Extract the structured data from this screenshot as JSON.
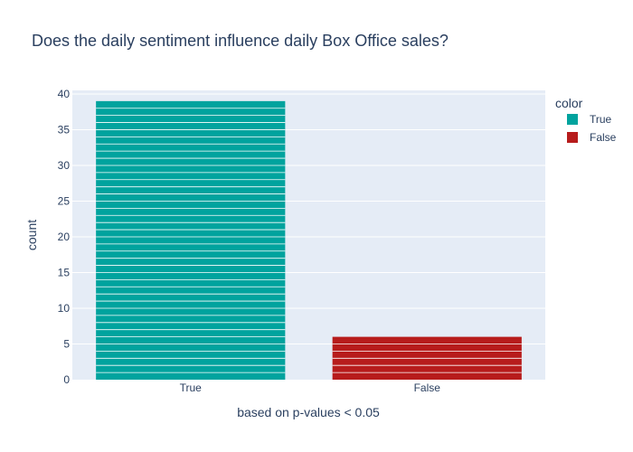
{
  "chart_data": {
    "type": "bar",
    "title": "Does the daily sentiment influence daily Box Office sales?",
    "xlabel": "based on p-values < 0.05",
    "ylabel": "count",
    "ylim": [
      0,
      40.5
    ],
    "yticks": [
      0,
      5,
      10,
      15,
      20,
      25,
      30,
      35,
      40
    ],
    "categories": [
      "True",
      "False"
    ],
    "series": [
      {
        "name": "True",
        "values": [
          39,
          0
        ],
        "color": "#00A39E"
      },
      {
        "name": "False",
        "values": [
          0,
          6
        ],
        "color": "#B71C1C"
      }
    ],
    "legend_title": "color",
    "legend_position": "top-right",
    "grid": true,
    "stacked_units": true
  }
}
